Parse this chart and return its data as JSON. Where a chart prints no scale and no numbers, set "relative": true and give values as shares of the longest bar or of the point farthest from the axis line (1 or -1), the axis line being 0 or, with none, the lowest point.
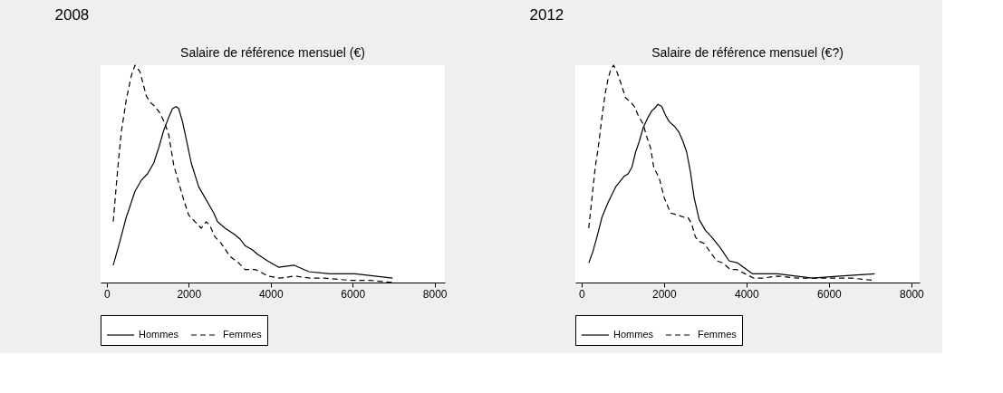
{
  "chart_data": [
    {
      "type": "line",
      "title": "2008",
      "subtitle": "Salaire de référence mensuel (€)",
      "relative": true,
      "legend": "bottom",
      "xlim": [
        -150,
        8250
      ],
      "xticks": [
        0,
        2000,
        4000,
        6000,
        8000
      ],
      "series": [
        {
          "name": "Hommes",
          "color": "#000000",
          "line_style": "solid",
          "x": [
            159,
            323,
            476,
            567,
            689,
            842,
            995,
            1147,
            1269,
            1391,
            1513,
            1605,
            1696,
            1757,
            1849,
            1940,
            2062,
            2245,
            2398,
            2520,
            2611,
            2703,
            2886,
            3130,
            3252,
            3374,
            3557,
            3679,
            3923,
            4198,
            4564,
            4930,
            5448,
            6059,
            6974
          ],
          "values": [
            0.08,
            0.19,
            0.3,
            0.35,
            0.42,
            0.47,
            0.5,
            0.55,
            0.62,
            0.7,
            0.76,
            0.8,
            0.81,
            0.8,
            0.74,
            0.66,
            0.55,
            0.44,
            0.39,
            0.35,
            0.32,
            0.28,
            0.25,
            0.22,
            0.2,
            0.17,
            0.15,
            0.13,
            0.1,
            0.07,
            0.08,
            0.05,
            0.04,
            0.04,
            0.02
          ]
        },
        {
          "name": "Femmes",
          "color": "#000000",
          "line_style": "dashed",
          "x": [
            159,
            262,
            354,
            476,
            598,
            689,
            811,
            964,
            1056,
            1178,
            1300,
            1422,
            1513,
            1635,
            1757,
            1879,
            2001,
            2154,
            2306,
            2428,
            2520,
            2642,
            2794,
            3008,
            3221,
            3374,
            3618,
            3740,
            3923,
            4228,
            4594,
            4960,
            5326,
            5937,
            6425,
            6974
          ],
          "values": [
            0.28,
            0.51,
            0.69,
            0.84,
            0.95,
            1.0,
            0.97,
            0.86,
            0.83,
            0.81,
            0.78,
            0.73,
            0.68,
            0.54,
            0.46,
            0.38,
            0.31,
            0.28,
            0.25,
            0.28,
            0.26,
            0.21,
            0.18,
            0.12,
            0.09,
            0.06,
            0.06,
            0.05,
            0.03,
            0.02,
            0.03,
            0.02,
            0.02,
            0.01,
            0.01,
            0.0
          ]
        }
      ]
    },
    {
      "type": "line",
      "title": "2012",
      "subtitle": "Salaire de référence mensuel (€?)",
      "relative": true,
      "legend": "bottom",
      "xlim": [
        -150,
        8200
      ],
      "xticks": [
        0,
        2000,
        4000,
        6000,
        8000
      ],
      "series": [
        {
          "name": "Hommes",
          "color": "#000000",
          "line_style": "solid",
          "x": [
            175,
            272,
            375,
            495,
            647,
            828,
            1039,
            1130,
            1221,
            1311,
            1402,
            1492,
            1613,
            1704,
            1764,
            1855,
            1946,
            2036,
            2127,
            2248,
            2369,
            2459,
            2550,
            2640,
            2731,
            2852,
            3003,
            3154,
            3366,
            3577,
            3789,
            4151,
            4755,
            5601,
            6266,
            7112
          ],
          "values": [
            0.09,
            0.14,
            0.21,
            0.3,
            0.37,
            0.44,
            0.49,
            0.5,
            0.53,
            0.6,
            0.65,
            0.71,
            0.76,
            0.79,
            0.8,
            0.82,
            0.81,
            0.77,
            0.74,
            0.72,
            0.69,
            0.65,
            0.6,
            0.51,
            0.39,
            0.29,
            0.24,
            0.21,
            0.16,
            0.1,
            0.09,
            0.04,
            0.04,
            0.02,
            0.03,
            0.04
          ]
        },
        {
          "name": "Femmes",
          "color": "#000000",
          "line_style": "dashed",
          "x": [
            175,
            254,
            332,
            405,
            495,
            574,
            647,
            707,
            779,
            858,
            949,
            1069,
            1190,
            1281,
            1372,
            1492,
            1583,
            1674,
            1752,
            1885,
            2006,
            2157,
            2338,
            2489,
            2580,
            2671,
            2761,
            2852,
            2973,
            3124,
            3275,
            3426,
            3607,
            3758,
            3970,
            4181,
            4393,
            4755,
            5239,
            5601,
            5964,
            6568,
            7082
          ],
          "values": [
            0.25,
            0.39,
            0.53,
            0.62,
            0.76,
            0.87,
            0.94,
            0.98,
            1.0,
            0.97,
            0.92,
            0.85,
            0.83,
            0.81,
            0.77,
            0.73,
            0.67,
            0.62,
            0.53,
            0.48,
            0.39,
            0.32,
            0.31,
            0.3,
            0.3,
            0.27,
            0.21,
            0.19,
            0.18,
            0.14,
            0.1,
            0.09,
            0.06,
            0.06,
            0.04,
            0.02,
            0.02,
            0.03,
            0.02,
            0.02,
            0.02,
            0.02,
            0.01
          ]
        }
      ]
    }
  ]
}
